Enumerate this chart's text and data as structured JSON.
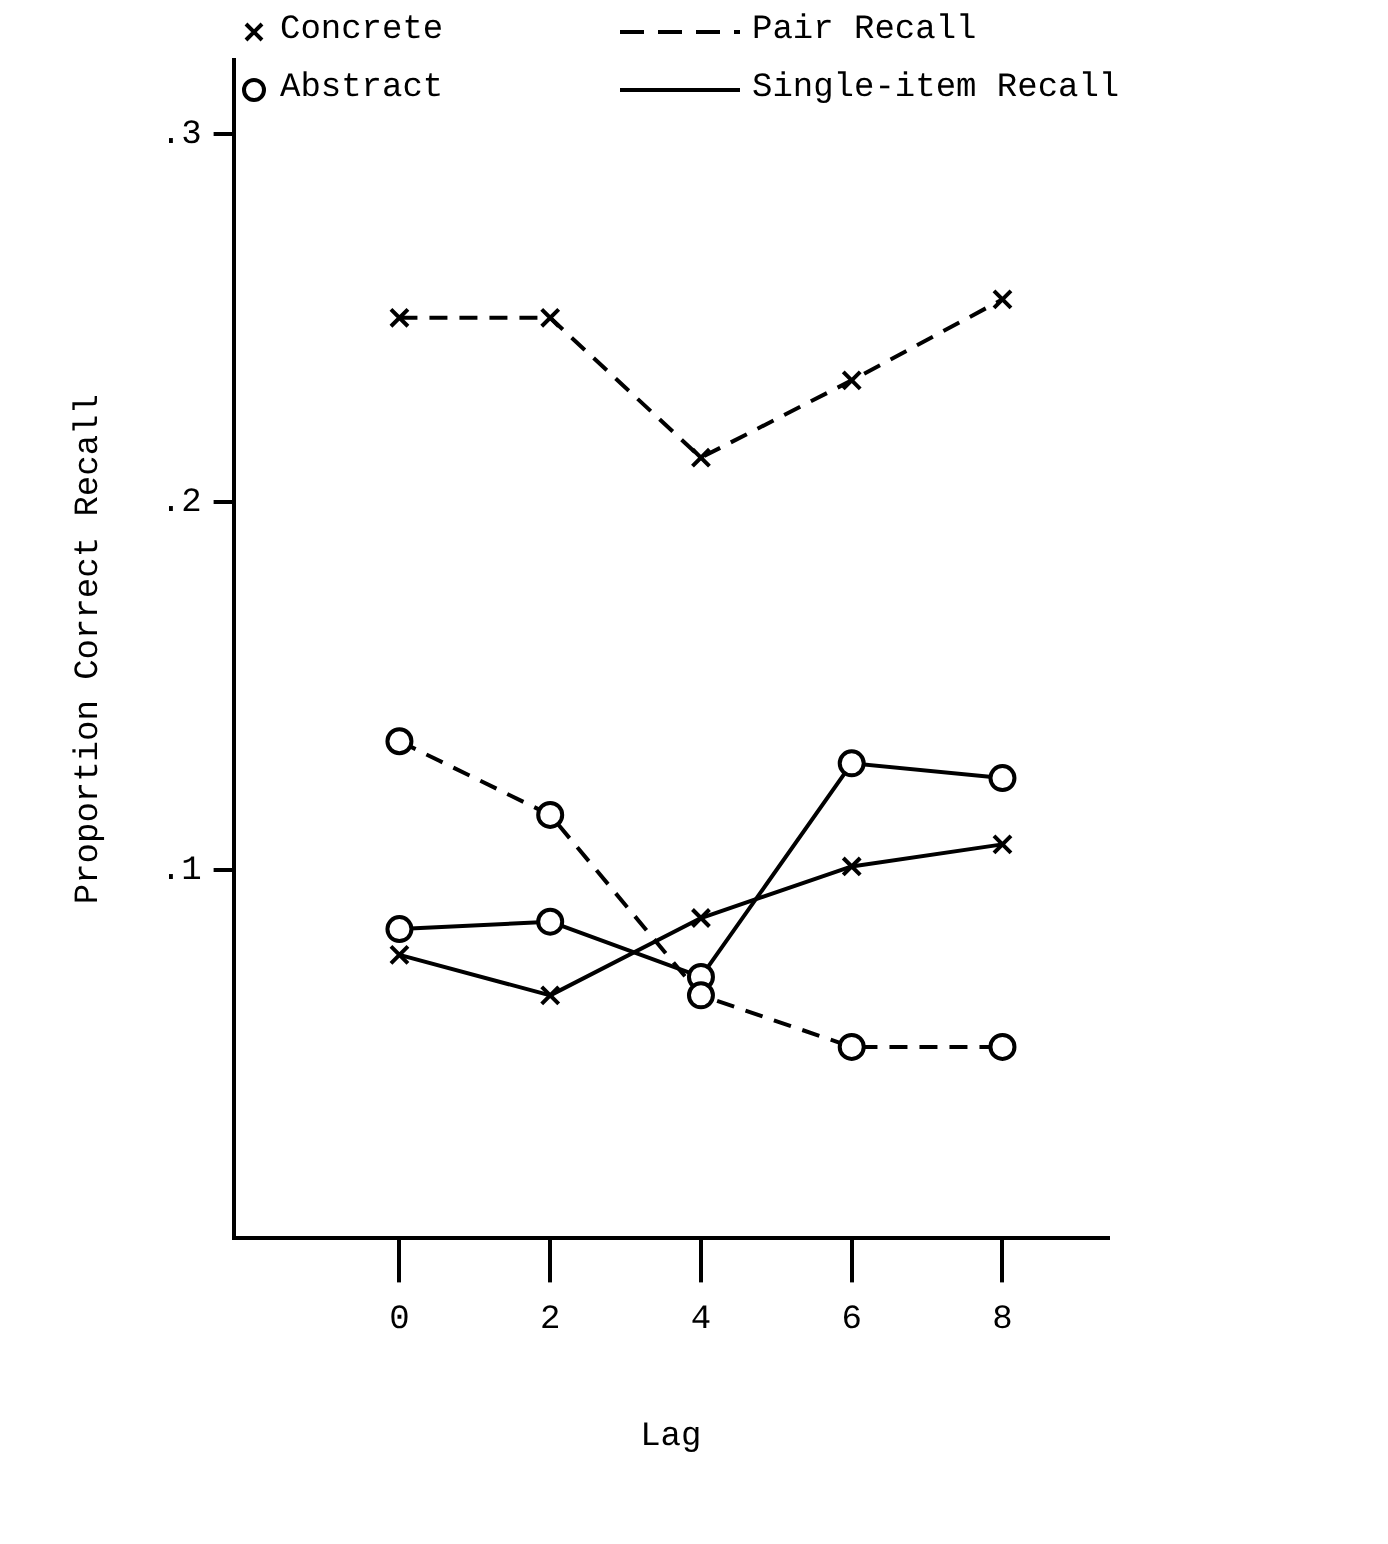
{
  "chart_data": {
    "type": "line",
    "xlabel": "Lag",
    "ylabel": "Proportion Correct Recall",
    "x": [
      0,
      2,
      4,
      6,
      8
    ],
    "xlim": [
      -2.2,
      9.4
    ],
    "xticks": [
      0,
      2,
      4,
      6,
      8
    ],
    "ylim": [
      0,
      0.32
    ],
    "yticks": [
      {
        "value": 0.1,
        "label": ".1"
      },
      {
        "value": 0.2,
        "label": ".2"
      },
      {
        "value": 0.3,
        "label": ".3"
      }
    ],
    "grid": false,
    "legend": false,
    "annotations": [
      "Concrete",
      "Pair Recall",
      "Abstract",
      "Single-item Recall"
    ],
    "series": [
      {
        "color": "#000000",
        "marker": "cross",
        "line_style": "dashed",
        "values": [
          0.25,
          0.25,
          0.212,
          0.233,
          0.255
        ]
      },
      {
        "color": "#000000",
        "marker": "circle",
        "line_style": "dashed",
        "values": [
          0.135,
          0.115,
          0.066,
          0.052,
          0.052
        ]
      },
      {
        "color": "#000000",
        "marker": "cross",
        "line_style": "solid",
        "values": [
          0.077,
          0.066,
          0.087,
          0.101,
          0.107
        ]
      },
      {
        "color": "#000000",
        "marker": "circle",
        "line_style": "solid",
        "values": [
          0.084,
          0.086,
          0.071,
          0.129,
          0.125
        ]
      }
    ]
  }
}
